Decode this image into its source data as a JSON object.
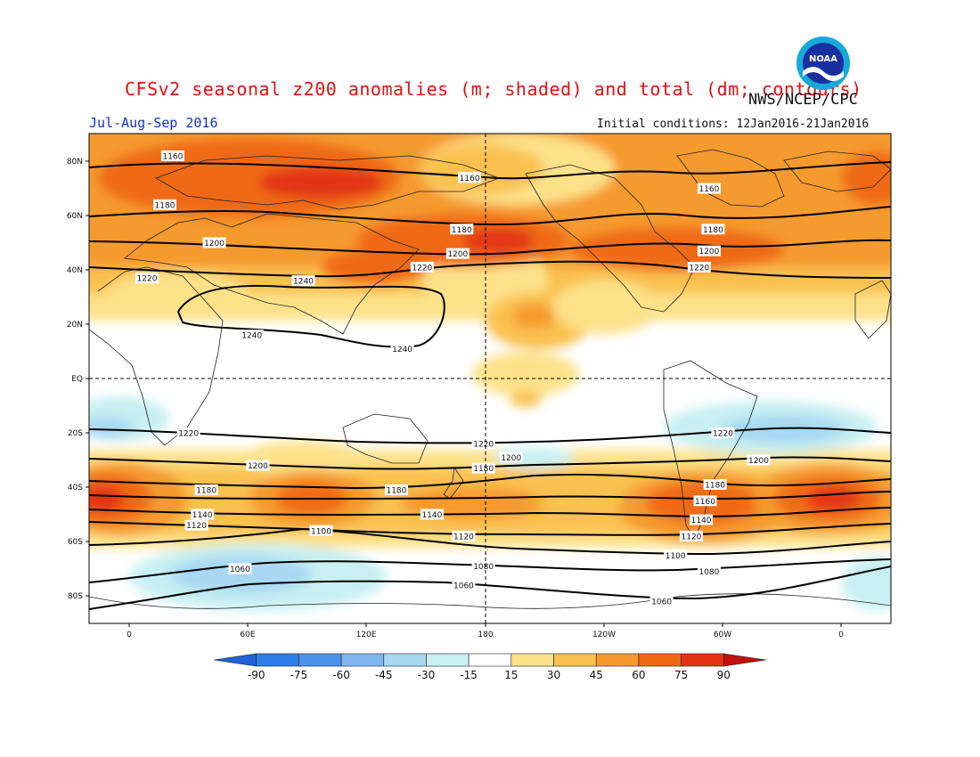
{
  "header": {
    "title": "CFSv2 seasonal z200 anomalies (m; shaded) and total (dm; contours)",
    "agency": "NWS/NCEP/CPC",
    "period": "Jul-Aug-Sep 2016",
    "initial_conditions": "Initial conditions: 12Jan2016-21Jan2016",
    "logo_text": "NOAA"
  },
  "axes": {
    "lat_labels": [
      "80N",
      "60N",
      "40N",
      "20N",
      "EQ",
      "20S",
      "40S",
      "60S",
      "80S"
    ],
    "lon_labels": [
      "0",
      "60E",
      "120E",
      "180",
      "120W",
      "60W",
      "0"
    ]
  },
  "colorbar": {
    "labels": [
      "-90",
      "-75",
      "-60",
      "-45",
      "-30",
      "-15",
      "15",
      "30",
      "45",
      "60",
      "75",
      "90"
    ],
    "colors": [
      "#1e62d6",
      "#2f7ee8",
      "#4b93ea",
      "#7fb6f0",
      "#a8d8f2",
      "#c8f0f2",
      "#ffffff",
      "#fde28a",
      "#f9c14f",
      "#f59a2e",
      "#ef6a14",
      "#e23412",
      "#c0100e"
    ]
  },
  "contour_labels": [
    {
      "text": "1160",
      "lon": 22,
      "lat": 82
    },
    {
      "text": "1160",
      "lon": 172,
      "lat": 74
    },
    {
      "text": "1160",
      "lon": 293,
      "lat": 70
    },
    {
      "text": "1180",
      "lon": 18,
      "lat": 64
    },
    {
      "text": "1180",
      "lon": 168,
      "lat": 55
    },
    {
      "text": "1180",
      "lon": 295,
      "lat": 55
    },
    {
      "text": "1200",
      "lon": 43,
      "lat": 50
    },
    {
      "text": "1200",
      "lon": 166,
      "lat": 46
    },
    {
      "text": "1200",
      "lon": 293,
      "lat": 47
    },
    {
      "text": "1220",
      "lon": 9,
      "lat": 37
    },
    {
      "text": "1220",
      "lon": 148,
      "lat": 41
    },
    {
      "text": "1220",
      "lon": 288,
      "lat": 41
    },
    {
      "text": "1240",
      "lon": 88,
      "lat": 36
    },
    {
      "text": "1240",
      "lon": 62,
      "lat": 16
    },
    {
      "text": "1240",
      "lon": 138,
      "lat": 11
    },
    {
      "text": "1220",
      "lon": 30,
      "lat": -20
    },
    {
      "text": "1220",
      "lon": 179,
      "lat": -24
    },
    {
      "text": "1220",
      "lon": 300,
      "lat": -20
    },
    {
      "text": "1200",
      "lon": 65,
      "lat": -32
    },
    {
      "text": "1200",
      "lon": 193,
      "lat": -29
    },
    {
      "text": "1200",
      "lon": 318,
      "lat": -30
    },
    {
      "text": "1180",
      "lon": 39,
      "lat": -41
    },
    {
      "text": "1180",
      "lon": 135,
      "lat": -41
    },
    {
      "text": "1180",
      "lon": 179,
      "lat": -33
    },
    {
      "text": "1180",
      "lon": 296,
      "lat": -39
    },
    {
      "text": "1160",
      "lon": 291,
      "lat": -45
    },
    {
      "text": "1140",
      "lon": 37,
      "lat": -50
    },
    {
      "text": "1140",
      "lon": 153,
      "lat": -50
    },
    {
      "text": "1140",
      "lon": 289,
      "lat": -52
    },
    {
      "text": "1120",
      "lon": 34,
      "lat": -54
    },
    {
      "text": "1120",
      "lon": 169,
      "lat": -58
    },
    {
      "text": "1120",
      "lon": 284,
      "lat": -58
    },
    {
      "text": "1100",
      "lon": 97,
      "lat": -56
    },
    {
      "text": "1100",
      "lon": 276,
      "lat": -65
    },
    {
      "text": "1080",
      "lon": 179,
      "lat": -69
    },
    {
      "text": "1080",
      "lon": 293,
      "lat": -71
    },
    {
      "text": "1060",
      "lon": 56,
      "lat": -70
    },
    {
      "text": "1060",
      "lon": 169,
      "lat": -76
    },
    {
      "text": "1060",
      "lon": 269,
      "lat": -82
    }
  ]
}
